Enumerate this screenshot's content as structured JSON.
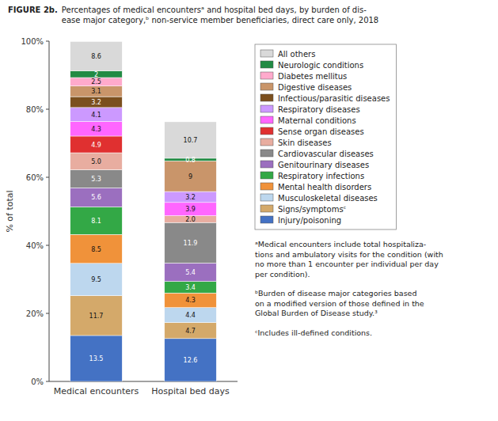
{
  "chart_data": {
    "type": "bar",
    "stacked": true,
    "data_labels": true,
    "grid": false,
    "legend": "right",
    "title": "FIGURE 2b.",
    "subtitle": "Percentages of medical encountersᵃ and hospital bed days, by burden of dis-\nease major category,ᵇ non-service member beneficiaries, direct care only, 2018",
    "y_label": "% of total",
    "categories": [
      "Medical encounters",
      "Hospital bed days"
    ],
    "series": [
      {
        "name": "Injury/poisoning",
        "color": "#4472C4",
        "values": [
          13.5,
          12.6
        ]
      },
      {
        "name": "Signs/symptomsᶜ",
        "color": "#D4A96A",
        "values": [
          11.7,
          4.7
        ]
      },
      {
        "name": "Musculoskeletal diseases",
        "color": "#BDD7EE",
        "values": [
          9.5,
          4.4
        ]
      },
      {
        "name": "Mental health disorders",
        "color": "#F0923A",
        "values": [
          8.5,
          4.3
        ]
      },
      {
        "name": "Respiratory infections",
        "color": "#33A846",
        "values": [
          8.1,
          3.4
        ]
      },
      {
        "name": "Genitourinary diseases",
        "color": "#9B6FBF",
        "values": [
          5.6,
          5.4
        ]
      },
      {
        "name": "Cardiovascular diseases",
        "color": "#898989",
        "values": [
          5.3,
          11.9
        ]
      },
      {
        "name": "Skin diseases",
        "color": "#E8ADA0",
        "values": [
          5.0,
          2.0
        ],
        "value_labels": [
          "5.0",
          "2.0"
        ]
      },
      {
        "name": "Sense organ diseases",
        "color": "#E03030",
        "values": [
          4.9,
          0.0
        ]
      },
      {
        "name": "Maternal conditions",
        "color": "#FF66FF",
        "values": [
          4.3,
          3.9
        ]
      },
      {
        "name": "Respiratory diseases",
        "color": "#CC99FF",
        "values": [
          4.1,
          3.2
        ]
      },
      {
        "name": "Infectious/parasitic diseases",
        "color": "#7B4F1E",
        "values": [
          3.2,
          0.0
        ]
      },
      {
        "name": "Digestive diseases",
        "color": "#C9956A",
        "values": [
          3.1,
          9.0
        ]
      },
      {
        "name": "Diabetes mellitus",
        "color": "#FFAACC",
        "values": [
          2.5,
          0.0
        ]
      },
      {
        "name": "Neurologic conditions",
        "color": "#228B44",
        "values": [
          2.0,
          0.8
        ]
      },
      {
        "name": "All others",
        "color": "#D9D9D9",
        "values": [
          8.6,
          10.7
        ]
      }
    ],
    "ylim": [
      0,
      100
    ],
    "yticks": [
      {
        "value": 0,
        "label": "0%"
      },
      {
        "value": 20,
        "label": "20%"
      },
      {
        "value": 40,
        "label": "40%"
      },
      {
        "value": 60,
        "label": "60%"
      },
      {
        "value": 80,
        "label": "80%"
      },
      {
        "value": 100,
        "label": "100%"
      }
    ],
    "annotations": [
      "ᵃMedical encounters include total hospitaliza-\ntions and ambulatory visits for the condition (with\nno more than 1 encounter per individual per day\nper condition).",
      "ᵇBurden of disease major categories based\non a modified version of those defined in the\nGlobal Burden of Disease study.³",
      "ᶜIncludes ill-defined conditions."
    ]
  }
}
